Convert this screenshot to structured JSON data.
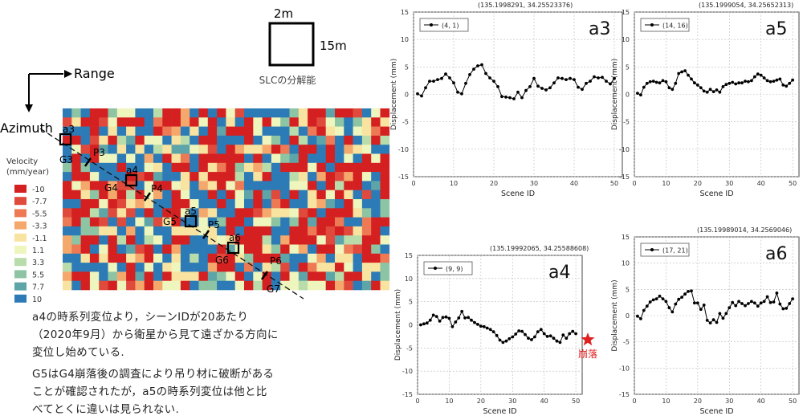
{
  "scale": {
    "width_label": "2m",
    "height_label": "15m",
    "caption": "SLCの分解能"
  },
  "axes_labels": {
    "range": "Range",
    "azimuth": "Azimuth"
  },
  "velocity_legend": {
    "title_line1": "Velocity",
    "title_line2": "(mm/year)",
    "entries": [
      {
        "label": "-10",
        "color": "#d42020"
      },
      {
        "label": "-7.7",
        "color": "#e04a3c"
      },
      {
        "label": "-5.5",
        "color": "#ed7a55"
      },
      {
        "label": "-3.3",
        "color": "#f5a86c"
      },
      {
        "label": "-1.1",
        "color": "#f8e3a0"
      },
      {
        "label": "1.1",
        "color": "#eef5bd"
      },
      {
        "label": "3.3",
        "color": "#b9dcab"
      },
      {
        "label": "5.5",
        "color": "#8dc4a3"
      },
      {
        "label": "7.7",
        "color": "#5da5a8"
      },
      {
        "label": "10",
        "color": "#2c7bb6"
      }
    ]
  },
  "map_labels": {
    "points": [
      "a3",
      "a4",
      "a5",
      "a6"
    ],
    "g_labels": [
      "G3",
      "G4",
      "G5",
      "G6",
      "G7"
    ],
    "p_labels": [
      "P3",
      "P4",
      "P5",
      "P6"
    ]
  },
  "notes": {
    "para1": [
      "a4の時系列変位より，シーンIDが20あたり",
      "（2020年9月）から衛星から見て遠ざかる方向に",
      "変位し始めている."
    ],
    "para2": [
      "G5はG4崩落後の調査により吊り材に破断がある",
      "ことが確認されたが，a5の時系列変位は他と比",
      "べてとくに違いは見られない."
    ]
  },
  "collapse_label": "崩落",
  "chart_data": [
    {
      "type": "line",
      "id": "a3",
      "coord": "(135.1998291, 34.25523376)",
      "legend": "(4, 1)",
      "tag": "a3",
      "xlabel": "Scene ID",
      "ylabel": "Displacement (mm)",
      "xlim": [
        0,
        52
      ],
      "ylim": [
        -15,
        15
      ],
      "xticks": [
        0,
        10,
        20,
        30,
        40,
        50
      ],
      "yticks": [
        15,
        10,
        5,
        0,
        -5,
        -10,
        -15
      ],
      "series": [
        {
          "x": [
            1,
            2,
            3,
            4,
            5,
            6,
            7,
            8,
            9,
            10,
            11,
            12,
            13,
            14,
            15,
            16,
            17,
            18,
            19,
            20,
            21,
            22,
            23,
            24,
            25,
            26,
            27,
            28,
            29,
            30,
            31,
            32,
            33,
            34,
            35,
            36,
            37,
            38,
            39,
            40,
            41,
            42,
            43,
            44,
            45,
            46,
            47,
            48,
            49,
            50
          ],
          "values": [
            0.1,
            -0.3,
            1.2,
            2.4,
            2.4,
            2.7,
            2.9,
            3.7,
            3.0,
            2.1,
            0.4,
            0.1,
            2.0,
            3.6,
            4.6,
            5.2,
            5.4,
            3.8,
            3.0,
            2.4,
            1.4,
            -0.4,
            -0.5,
            -0.6,
            -0.8,
            0.4,
            -0.6,
            0.7,
            1.4,
            2.9,
            1.5,
            1.1,
            0.8,
            1.2,
            2.1,
            3.0,
            2.9,
            2.7,
            2.9,
            2.7,
            1.3,
            0.9,
            2.0,
            2.4,
            3.2,
            3.0,
            3.1,
            2.4,
            1.9,
            2.9
          ]
        }
      ]
    },
    {
      "type": "line",
      "id": "a5",
      "coord": "(135.1999054, 34.25652313)",
      "legend": "(14, 16)",
      "tag": "a5",
      "xlabel": "Scene ID",
      "ylabel": "Displacement (mm)",
      "xlim": [
        0,
        52
      ],
      "ylim": [
        -15,
        15
      ],
      "xticks": [
        0,
        10,
        20,
        30,
        40,
        50
      ],
      "yticks": [
        15,
        10,
        5,
        0,
        -5,
        -10,
        -15
      ],
      "series": [
        {
          "x": [
            1,
            2,
            3,
            4,
            5,
            6,
            7,
            8,
            9,
            10,
            11,
            12,
            13,
            14,
            15,
            16,
            17,
            18,
            19,
            20,
            21,
            22,
            23,
            24,
            25,
            26,
            27,
            28,
            29,
            30,
            31,
            32,
            33,
            34,
            35,
            36,
            37,
            38,
            39,
            40,
            41,
            42,
            43,
            44,
            45,
            46,
            47,
            48,
            49,
            50
          ],
          "values": [
            0.2,
            -0.1,
            1.3,
            2.0,
            2.3,
            2.4,
            2.2,
            2.1,
            2.5,
            2.3,
            1.2,
            0.9,
            2.0,
            3.8,
            4.1,
            4.3,
            3.5,
            2.8,
            2.1,
            1.7,
            1.2,
            0.6,
            0.4,
            0.9,
            0.5,
            0.8,
            0.4,
            1.4,
            1.8,
            2.0,
            2.2,
            1.9,
            2.1,
            2.1,
            2.4,
            2.3,
            2.5,
            3.2,
            3.7,
            3.5,
            3.0,
            2.5,
            2.3,
            2.4,
            2.6,
            2.8,
            1.7,
            1.5,
            2.0,
            2.6
          ]
        }
      ]
    },
    {
      "type": "line",
      "id": "a4",
      "coord": "(135.19992065, 34.25588608)",
      "legend": "(9, 9)",
      "tag": "a4",
      "xlabel": "Scene ID",
      "ylabel": "Displacement (mm)",
      "xlim": [
        0,
        52
      ],
      "ylim": [
        -15,
        15
      ],
      "xticks": [
        0,
        10,
        20,
        30,
        40,
        50
      ],
      "yticks": [
        15,
        10,
        5,
        0,
        -5,
        -10,
        -15
      ],
      "series": [
        {
          "x": [
            1,
            2,
            3,
            4,
            5,
            6,
            7,
            8,
            9,
            10,
            11,
            12,
            13,
            14,
            15,
            16,
            17,
            18,
            19,
            20,
            21,
            22,
            23,
            24,
            25,
            26,
            27,
            28,
            29,
            30,
            31,
            32,
            33,
            34,
            35,
            36,
            37,
            38,
            39,
            40,
            41,
            42,
            43,
            44,
            45,
            46,
            47,
            48,
            49,
            50
          ],
          "values": [
            0.0,
            0.2,
            0.4,
            1.0,
            2.1,
            1.8,
            0.8,
            1.6,
            1.7,
            1.4,
            -0.4,
            0.6,
            1.5,
            2.9,
            1.5,
            1.6,
            1.0,
            0.5,
            0.1,
            -0.3,
            -0.4,
            -0.7,
            -1.0,
            -1.5,
            -2.3,
            -3.3,
            -3.8,
            -3.5,
            -3.0,
            -2.6,
            -2.0,
            -1.3,
            -1.4,
            -2.1,
            -2.9,
            -3.2,
            -2.6,
            -1.5,
            -1.0,
            -1.9,
            -2.5,
            -2.4,
            -2.9,
            -3.5,
            -3.8,
            -2.2,
            -2.9,
            -1.9,
            -1.4,
            -1.9
          ]
        }
      ]
    },
    {
      "type": "line",
      "id": "a6",
      "coord": "(135.19989014, 34.2569046)",
      "legend": "(17, 21)",
      "tag": "a6",
      "xlabel": "Scene ID",
      "ylabel": "Displacement (mm)",
      "xlim": [
        0,
        52
      ],
      "ylim": [
        -15,
        15
      ],
      "xticks": [
        0,
        10,
        20,
        30,
        40,
        50
      ],
      "yticks": [
        15,
        10,
        5,
        0,
        -5,
        -10,
        -15
      ],
      "series": [
        {
          "x": [
            1,
            2,
            3,
            4,
            5,
            6,
            7,
            8,
            9,
            10,
            11,
            12,
            13,
            14,
            15,
            16,
            17,
            18,
            19,
            20,
            21,
            22,
            23,
            24,
            25,
            26,
            27,
            28,
            29,
            30,
            31,
            32,
            33,
            34,
            35,
            36,
            37,
            38,
            39,
            40,
            41,
            42,
            43,
            44,
            45,
            46,
            47,
            48,
            49,
            50
          ],
          "values": [
            -0.1,
            -0.6,
            1.0,
            1.8,
            2.6,
            3.0,
            3.2,
            3.7,
            3.2,
            2.7,
            1.5,
            0.7,
            2.2,
            3.1,
            3.5,
            4.1,
            4.6,
            4.7,
            2.4,
            2.4,
            1.2,
            2.0,
            -0.9,
            -1.4,
            -0.8,
            -1.3,
            0.4,
            -0.5,
            0.4,
            1.5,
            2.5,
            1.9,
            2.7,
            2.3,
            1.9,
            2.3,
            2.7,
            2.4,
            1.8,
            2.4,
            2.7,
            3.6,
            2.5,
            2.6,
            4.3,
            2.2,
            1.3,
            1.4,
            2.3,
            3.2
          ]
        }
      ]
    }
  ]
}
